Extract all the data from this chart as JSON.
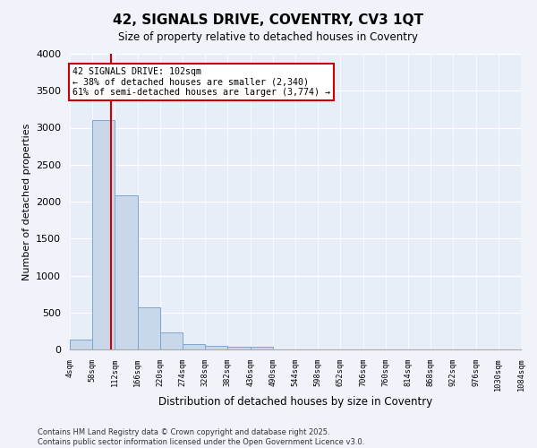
{
  "title": "42, SIGNALS DRIVE, COVENTRY, CV3 1QT",
  "subtitle": "Size of property relative to detached houses in Coventry",
  "xlabel": "Distribution of detached houses by size in Coventry",
  "ylabel": "Number of detached properties",
  "bar_color": "#c8d8ea",
  "bar_edge_color": "#7aa8cc",
  "background_color": "#e8eef8",
  "fig_background_color": "#f0f4fa",
  "grid_color": "#ffffff",
  "bins": [
    4,
    58,
    112,
    166,
    220,
    274,
    328,
    382,
    436,
    490,
    544,
    598,
    652,
    706,
    760,
    814,
    868,
    922,
    976,
    1030,
    1084
  ],
  "counts": [
    130,
    3100,
    2080,
    570,
    230,
    75,
    50,
    42,
    35,
    5,
    0,
    0,
    0,
    0,
    0,
    0,
    0,
    0,
    0,
    0
  ],
  "property_size": 102,
  "annotation_line1": "42 SIGNALS DRIVE: 102sqm",
  "annotation_line2": "← 38% of detached houses are smaller (2,340)",
  "annotation_line3": "61% of semi-detached houses are larger (3,774) →",
  "annotation_box_color": "#ffffff",
  "annotation_box_edge_color": "#cc0000",
  "vline_color": "#cc0000",
  "ylim": [
    0,
    4000
  ],
  "yticks": [
    0,
    500,
    1000,
    1500,
    2000,
    2500,
    3000,
    3500,
    4000
  ],
  "footnote1": "Contains HM Land Registry data © Crown copyright and database right 2025.",
  "footnote2": "Contains public sector information licensed under the Open Government Licence v3.0."
}
